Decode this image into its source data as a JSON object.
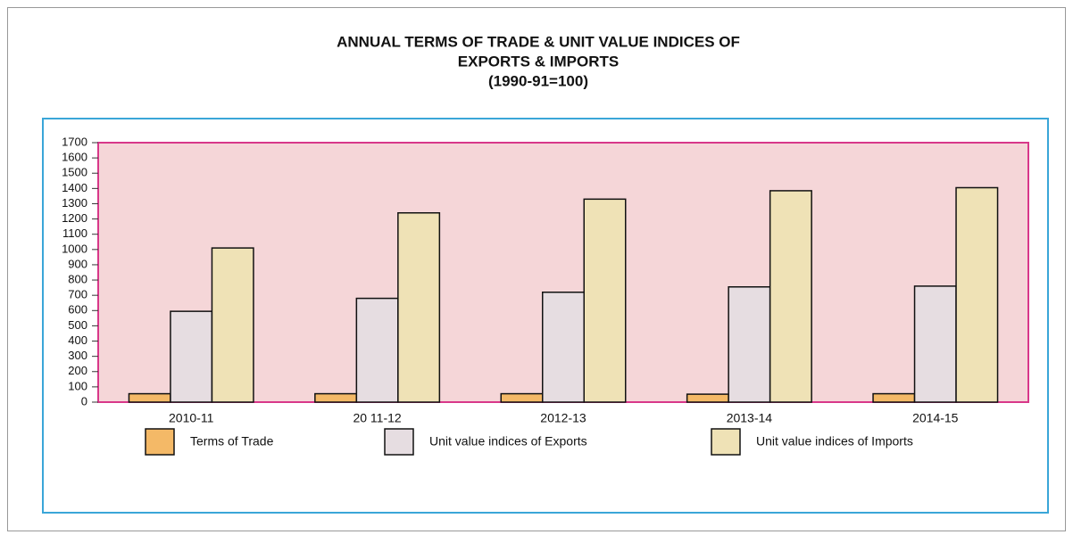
{
  "chart_data": {
    "type": "bar",
    "title": [
      "ANNUAL TERMS OF TRADE & UNIT VALUE INDICES OF",
      "EXPORTS & IMPORTS"
    ],
    "subtitle": "(1990-91=100)",
    "categories": [
      "2010-11",
      "20 11-12",
      "2012-13",
      "2013-14",
      "2014-15"
    ],
    "series": [
      {
        "name": "Terms of Trade",
        "color": "#f4b967",
        "values": [
          55,
          55,
          55,
          52,
          55
        ]
      },
      {
        "name": "Unit value indices of Exports",
        "color": "#e6dde1",
        "values": [
          595,
          680,
          720,
          755,
          760
        ]
      },
      {
        "name": "Unit value indices of Imports",
        "color": "#efe2b6",
        "values": [
          1010,
          1240,
          1330,
          1385,
          1405
        ]
      }
    ],
    "ylim": [
      0,
      1700
    ],
    "yticks": [
      0,
      100,
      200,
      300,
      400,
      500,
      600,
      700,
      800,
      900,
      1000,
      1100,
      1200,
      1300,
      1400,
      1500,
      1600,
      1700
    ],
    "grid": false,
    "legend": "bottom"
  }
}
